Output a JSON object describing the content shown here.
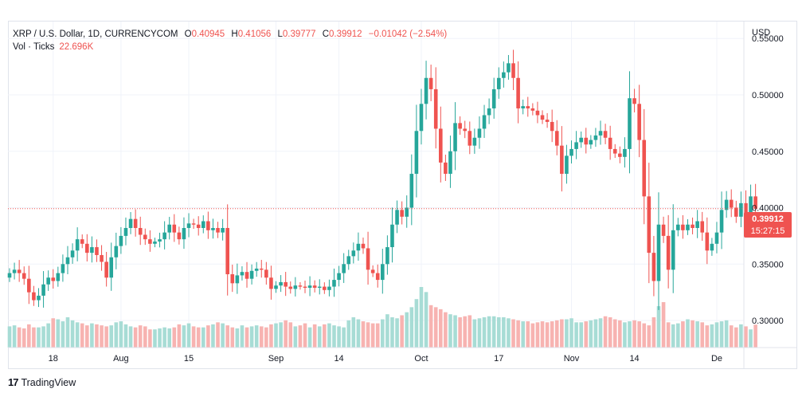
{
  "legend": {
    "symbol": "XRP / U.S. Dollar, 1D, CURRENCYCOM",
    "open_label": "O",
    "open": "0.40945",
    "high_label": "H",
    "high": "0.41056",
    "low_label": "L",
    "low": "0.39777",
    "close_label": "C",
    "close": "0.39912",
    "change": "−0.01042 (−2.54%)",
    "volume_label": "Vol · Ticks",
    "volume": "22.696K"
  },
  "price_tag": {
    "price": "0.39912",
    "countdown": "15:27:15"
  },
  "branding": {
    "logo_mark": "17",
    "name": "TradingView"
  },
  "colors": {
    "up": "#26a69a",
    "down": "#ef5350",
    "vol_up": "#a7dcd5",
    "vol_down": "#f7b3b1",
    "grid": "#f0f3fa"
  },
  "chart_data": {
    "type": "candlestick",
    "title": "XRP / U.S. Dollar, 1D, CURRENCYCOM",
    "currency_label": "USD",
    "ylim": [
      0.276,
      0.565
    ],
    "y_ticks": [
      0.3,
      0.35,
      0.4,
      0.45,
      0.5,
      0.55
    ],
    "y_tick_labels": [
      "0.30000",
      "0.35000",
      "0.40000",
      "0.45000",
      "0.50000",
      "0.55000"
    ],
    "x_tick_labels": [
      {
        "label": "18",
        "index": 9
      },
      {
        "label": "Aug",
        "index": 23
      },
      {
        "label": "15",
        "index": 37
      },
      {
        "label": "Sep",
        "index": 55
      },
      {
        "label": "14",
        "index": 68
      },
      {
        "label": "Oct",
        "index": 85
      },
      {
        "label": "17",
        "index": 101
      },
      {
        "label": "Nov",
        "index": 116
      },
      {
        "label": "14",
        "index": 129
      },
      {
        "label": "De",
        "index": 146
      }
    ],
    "last_price": 0.39912,
    "closes": [
      0.342,
      0.345,
      0.342,
      0.337,
      0.325,
      0.318,
      0.322,
      0.332,
      0.338,
      0.335,
      0.342,
      0.35,
      0.356,
      0.362,
      0.372,
      0.368,
      0.36,
      0.365,
      0.358,
      0.352,
      0.338,
      0.356,
      0.366,
      0.375,
      0.382,
      0.39,
      0.382,
      0.376,
      0.372,
      0.368,
      0.37,
      0.372,
      0.378,
      0.385,
      0.378,
      0.372,
      0.382,
      0.386,
      0.385,
      0.382,
      0.388,
      0.38,
      0.382,
      0.378,
      0.382,
      0.341,
      0.333,
      0.34,
      0.343,
      0.337,
      0.344,
      0.346,
      0.345,
      0.338,
      0.328,
      0.331,
      0.334,
      0.33,
      0.328,
      0.331,
      0.33,
      0.329,
      0.331,
      0.329,
      0.33,
      0.327,
      0.33,
      0.336,
      0.342,
      0.35,
      0.357,
      0.362,
      0.368,
      0.364,
      0.345,
      0.342,
      0.336,
      0.35,
      0.365,
      0.385,
      0.398,
      0.392,
      0.4,
      0.43,
      0.468,
      0.492,
      0.515,
      0.505,
      0.47,
      0.44,
      0.43,
      0.45,
      0.475,
      0.47,
      0.468,
      0.455,
      0.462,
      0.47,
      0.482,
      0.488,
      0.505,
      0.515,
      0.52,
      0.528,
      0.515,
      0.488,
      0.49,
      0.488,
      0.486,
      0.482,
      0.478,
      0.476,
      0.468,
      0.455,
      0.43,
      0.446,
      0.452,
      0.458,
      0.462,
      0.456,
      0.46,
      0.464,
      0.468,
      0.462,
      0.452,
      0.448,
      0.445,
      0.452,
      0.497,
      0.492,
      0.46,
      0.41,
      0.36,
      0.335,
      0.385,
      0.375,
      0.345,
      0.38,
      0.385,
      0.38,
      0.385,
      0.382,
      0.388,
      0.378,
      0.362,
      0.368,
      0.378,
      0.398,
      0.407,
      0.4,
      0.392,
      0.404,
      0.395,
      0.41,
      0.399
    ],
    "volumes_k": [
      21,
      22,
      20,
      19,
      23,
      20,
      20,
      21,
      24,
      29,
      28,
      26,
      30,
      27,
      25,
      24,
      22,
      24,
      23,
      22,
      21,
      22,
      25,
      26,
      23,
      21,
      20,
      22,
      21,
      18,
      18,
      19,
      20,
      19,
      20,
      23,
      22,
      24,
      21,
      20,
      20,
      22,
      23,
      25,
      24,
      22,
      20,
      19,
      22,
      20,
      21,
      22,
      21,
      20,
      23,
      24,
      25,
      27,
      25,
      21,
      22,
      24,
      20,
      23,
      21,
      23,
      24,
      22,
      21,
      20,
      27,
      30,
      28,
      26,
      25,
      24,
      24,
      28,
      33,
      30,
      29,
      32,
      35,
      40,
      48,
      60,
      55,
      42,
      40,
      38,
      35,
      33,
      32,
      30,
      31,
      32,
      28,
      29,
      30,
      31,
      31,
      30,
      30,
      29,
      28,
      27,
      26,
      26,
      24,
      25,
      26,
      25,
      26,
      27,
      28,
      28,
      29,
      25,
      25,
      26,
      27,
      28,
      29,
      31,
      30,
      28,
      27,
      25,
      26,
      27,
      26,
      24,
      22,
      30,
      41,
      45,
      25,
      23,
      24,
      26,
      28,
      27,
      26,
      25,
      22,
      23,
      25,
      26,
      27,
      22,
      20,
      23,
      21,
      18,
      22.696
    ]
  }
}
